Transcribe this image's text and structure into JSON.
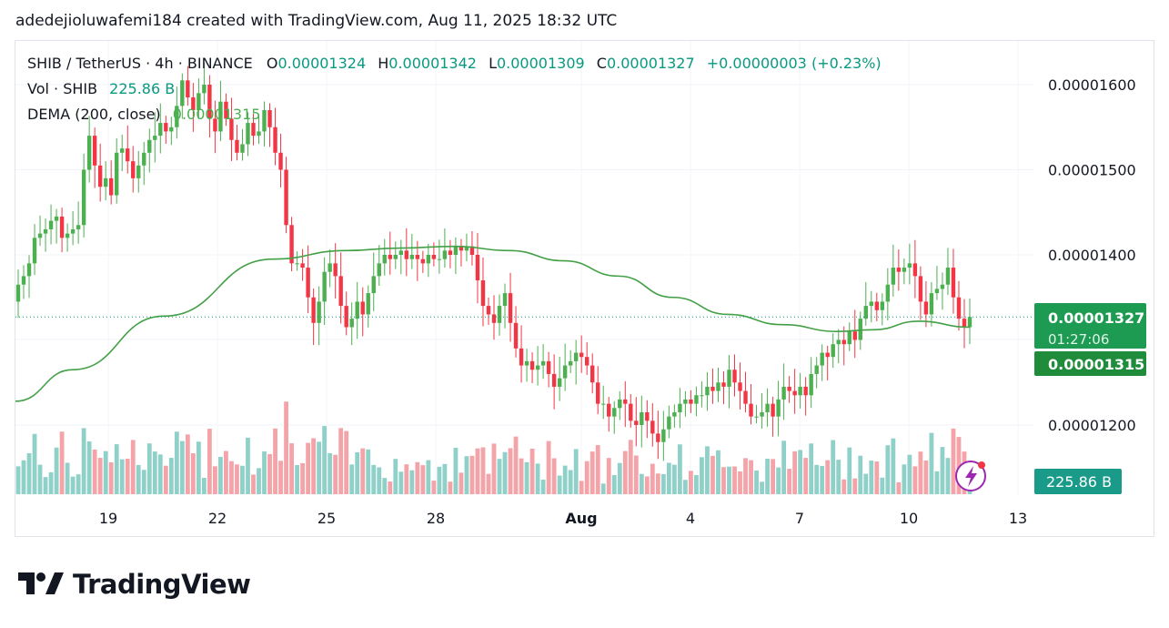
{
  "header": {
    "text": "adedejioluwafemi184 created with TradingView.com, Aug 11, 2025 18:32 UTC"
  },
  "legend": {
    "symbol": "SHIB / TetherUS · 4h · BINANCE",
    "o_label": "O",
    "o_value": "0.00001324",
    "h_label": "H",
    "h_value": "0.00001342",
    "l_label": "L",
    "l_value": "0.00001309",
    "c_label": "C",
    "c_value": "0.00001327",
    "change": "+0.00000003 (+0.23%)",
    "vol_label": "Vol · SHIB",
    "vol_value": "225.86 B",
    "dema_label": "DEMA (200, close)",
    "dema_value": "0.00001315"
  },
  "price_tags": {
    "close": "0.00001327",
    "countdown": "01:27:06",
    "dema": "0.00001315",
    "volume": "225.86 B"
  },
  "colors": {
    "up": "#4caf50",
    "down": "#f23645",
    "vol_up": "#8fd0c8",
    "vol_down": "#f4a3a8",
    "dema": "#43a047",
    "tag_green": "#089981",
    "tag_dark": "#1e8c3a"
  },
  "logo": {
    "text": "TradingView"
  },
  "chart_data": {
    "type": "candlestick",
    "title": "SHIB / TetherUS · 4h · BINANCE",
    "y_ticks": [
      "0.00001600",
      "0.00001500",
      "0.00001400",
      "0.00001200"
    ],
    "x_ticks": [
      "19",
      "22",
      "25",
      "28",
      "Aug",
      "4",
      "7",
      "10",
      "13"
    ],
    "ylim": [
      1.14e-05,
      1.66e-05
    ],
    "last_close": 1.327e-05,
    "dema_last": 1.315e-05,
    "close": [
      1.365e-05,
      1.375e-05,
      1.39e-05,
      1.42e-05,
      1.425e-05,
      1.43e-05,
      1.44e-05,
      1.445e-05,
      1.42e-05,
      1.425e-05,
      1.43e-05,
      1.435e-05,
      1.5e-05,
      1.54e-05,
      1.505e-05,
      1.48e-05,
      1.49e-05,
      1.47e-05,
      1.52e-05,
      1.525e-05,
      1.51e-05,
      1.49e-05,
      1.505e-05,
      1.52e-05,
      1.535e-05,
      1.54e-05,
      1.555e-05,
      1.545e-05,
      1.55e-05,
      1.575e-05,
      1.605e-05,
      1.585e-05,
      1.57e-05,
      1.59e-05,
      1.6e-05,
      1.56e-05,
      1.545e-05,
      1.58e-05,
      1.56e-05,
      1.535e-05,
      1.52e-05,
      1.53e-05,
      1.555e-05,
      1.54e-05,
      1.545e-05,
      1.57e-05,
      1.55e-05,
      1.52e-05,
      1.5e-05,
      1.435e-05,
      1.39e-05,
      1.39e-05,
      1.385e-05,
      1.35e-05,
      1.32e-05,
      1.345e-05,
      1.38e-05,
      1.39e-05,
      1.375e-05,
      1.34e-05,
      1.315e-05,
      1.325e-05,
      1.345e-05,
      1.33e-05,
      1.355e-05,
      1.375e-05,
      1.39e-05,
      1.4e-05,
      1.395e-05,
      1.4e-05,
      1.405e-05,
      1.395e-05,
      1.4e-05,
      1.395e-05,
      1.39e-05,
      1.4e-05,
      1.395e-05,
      1.395e-05,
      1.405e-05,
      1.4e-05,
      1.41e-05,
      1.405e-05,
      1.41e-05,
      1.4e-05,
      1.37e-05,
      1.34e-05,
      1.33e-05,
      1.32e-05,
      1.34e-05,
      1.355e-05,
      1.32e-05,
      1.29e-05,
      1.27e-05,
      1.275e-05,
      1.265e-05,
      1.27e-05,
      1.275e-05,
      1.26e-05,
      1.245e-05,
      1.255e-05,
      1.27e-05,
      1.275e-05,
      1.285e-05,
      1.28e-05,
      1.27e-05,
      1.25e-05,
      1.225e-05,
      1.225e-05,
      1.21e-05,
      1.22e-05,
      1.23e-05,
      1.225e-05,
      1.205e-05,
      1.2e-05,
      1.215e-05,
      1.205e-05,
      1.19e-05,
      1.18e-05,
      1.195e-05,
      1.21e-05,
      1.215e-05,
      1.225e-05,
      1.23e-05,
      1.225e-05,
      1.235e-05,
      1.235e-05,
      1.245e-05,
      1.24e-05,
      1.25e-05,
      1.245e-05,
      1.265e-05,
      1.25e-05,
      1.24e-05,
      1.225e-05,
      1.21e-05,
      1.21e-05,
      1.215e-05,
      1.225e-05,
      1.21e-05,
      1.23e-05,
      1.245e-05,
      1.24e-05,
      1.235e-05,
      1.245e-05,
      1.235e-05,
      1.26e-05,
      1.27e-05,
      1.285e-05,
      1.28e-05,
      1.295e-05,
      1.3e-05,
      1.295e-05,
      1.31e-05,
      1.3e-05,
      1.325e-05,
      1.34e-05,
      1.345e-05,
      1.335e-05,
      1.345e-05,
      1.365e-05,
      1.385e-05,
      1.38e-05,
      1.385e-05,
      1.39e-05,
      1.375e-05,
      1.345e-05,
      1.33e-05,
      1.355e-05,
      1.36e-05,
      1.365e-05,
      1.385e-05,
      1.35e-05,
      1.325e-05,
      1.315e-05,
      1.327e-05
    ],
    "volume_relative": "bars in lower pane, last bar 225.86 B"
  }
}
